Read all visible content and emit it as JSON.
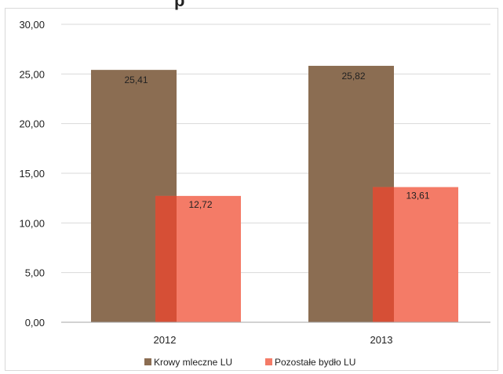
{
  "chart_data": {
    "type": "bar",
    "title_fragment": "p",
    "categories": [
      "2012",
      "2013"
    ],
    "series": [
      {
        "name": "Krowy mleczne LU",
        "values": [
          25.41,
          25.82
        ],
        "labels": [
          "25,41",
          "25,82"
        ],
        "color": "#8b6d52"
      },
      {
        "name": "Pozostałe bydło LU",
        "values": [
          12.72,
          13.61
        ],
        "labels": [
          "12,72",
          "13,61"
        ],
        "color": "#f47b67"
      }
    ],
    "overlap_color": "#d64f36",
    "ylim": [
      0,
      30
    ],
    "yticks": [
      0,
      5,
      10,
      15,
      20,
      25,
      30
    ],
    "ytick_labels": [
      "0,00",
      "5,00",
      "10,00",
      "15,00",
      "20,00",
      "25,00",
      "30,00"
    ],
    "grid": true,
    "legend_position": "bottom"
  }
}
